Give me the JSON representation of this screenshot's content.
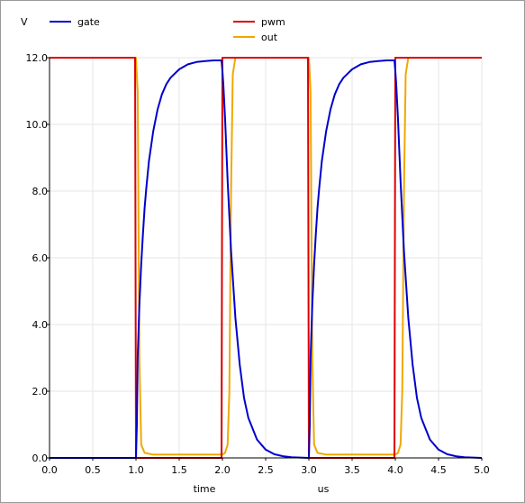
{
  "chart_data": {
    "type": "line",
    "ylabel": "V",
    "xlabel": "time",
    "xunit": "us",
    "xlim": [
      0.0,
      5.0
    ],
    "ylim": [
      0.0,
      12.0
    ],
    "xticks": [
      0.0,
      0.5,
      1.0,
      1.5,
      2.0,
      2.5,
      3.0,
      3.5,
      4.0,
      4.5,
      5.0
    ],
    "yticks": [
      0.0,
      2.0,
      4.0,
      6.0,
      8.0,
      10.0,
      12.0
    ],
    "xtick_labels": [
      "0.0",
      "0.5",
      "1.0",
      "1.5",
      "2.0",
      "2.5",
      "3.0",
      "3.5",
      "4.0",
      "4.5",
      "5.0"
    ],
    "ytick_labels": [
      "0.0",
      "2.0",
      "4.0",
      "6.0",
      "8.0",
      "10.0",
      "12.0"
    ],
    "grid": true,
    "legend_position": "top",
    "series": [
      {
        "name": "gate",
        "color": "#0000cc",
        "x": [
          0.0,
          1.0,
          1.01,
          1.02,
          1.04,
          1.06,
          1.08,
          1.1,
          1.12,
          1.15,
          1.2,
          1.25,
          1.3,
          1.35,
          1.4,
          1.5,
          1.6,
          1.7,
          1.8,
          1.9,
          1.99,
          2.0,
          2.01,
          2.03,
          2.06,
          2.1,
          2.15,
          2.2,
          2.25,
          2.3,
          2.4,
          2.5,
          2.6,
          2.7,
          2.8,
          2.9,
          3.0,
          3.01,
          3.02,
          3.04,
          3.06,
          3.08,
          3.1,
          3.12,
          3.15,
          3.2,
          3.25,
          3.3,
          3.35,
          3.4,
          3.5,
          3.6,
          3.7,
          3.8,
          3.9,
          3.99,
          4.0,
          4.01,
          4.03,
          4.06,
          4.1,
          4.15,
          4.2,
          4.25,
          4.3,
          4.4,
          4.5,
          4.6,
          4.7,
          4.8,
          4.9,
          5.0
        ],
        "y": [
          0.0,
          0.0,
          1.0,
          3.0,
          4.6,
          5.8,
          6.7,
          7.5,
          8.1,
          8.9,
          9.8,
          10.45,
          10.9,
          11.2,
          11.4,
          11.65,
          11.8,
          11.87,
          11.9,
          11.92,
          11.92,
          11.6,
          11.2,
          10.2,
          8.3,
          6.2,
          4.2,
          2.8,
          1.8,
          1.2,
          0.55,
          0.25,
          0.11,
          0.05,
          0.02,
          0.01,
          0.0,
          1.0,
          3.0,
          4.6,
          5.8,
          6.7,
          7.5,
          8.1,
          8.9,
          9.8,
          10.45,
          10.9,
          11.2,
          11.4,
          11.65,
          11.8,
          11.87,
          11.9,
          11.92,
          11.92,
          11.6,
          11.2,
          10.2,
          8.3,
          6.2,
          4.2,
          2.8,
          1.8,
          1.2,
          0.55,
          0.25,
          0.11,
          0.05,
          0.02,
          0.01,
          0.0
        ]
      },
      {
        "name": "pwm",
        "color": "#dd0000",
        "x": [
          0.0,
          0.99,
          1.0,
          1.99,
          2.0,
          2.99,
          3.0,
          3.99,
          4.0,
          5.0
        ],
        "y": [
          12.0,
          12.0,
          0.0,
          0.0,
          12.0,
          12.0,
          0.0,
          0.0,
          12.0,
          12.0
        ]
      },
      {
        "name": "out",
        "color": "#f0a800",
        "x": [
          0.0,
          1.0,
          1.02,
          1.04,
          1.06,
          1.1,
          1.2,
          1.5,
          1.99,
          2.0,
          2.03,
          2.06,
          2.08,
          2.1,
          2.12,
          2.15,
          3.0,
          3.02,
          3.04,
          3.06,
          3.1,
          3.2,
          3.5,
          3.99,
          4.0,
          4.03,
          4.06,
          4.08,
          4.1,
          4.12,
          4.15,
          5.0
        ],
        "y": [
          12.0,
          12.0,
          11.0,
          3.0,
          0.4,
          0.15,
          0.1,
          0.1,
          0.1,
          0.1,
          0.15,
          0.4,
          2.0,
          8.0,
          11.5,
          12.0,
          12.0,
          11.0,
          3.0,
          0.4,
          0.15,
          0.1,
          0.1,
          0.1,
          0.1,
          0.15,
          0.4,
          2.0,
          8.0,
          11.5,
          12.0,
          12.0
        ]
      }
    ]
  }
}
